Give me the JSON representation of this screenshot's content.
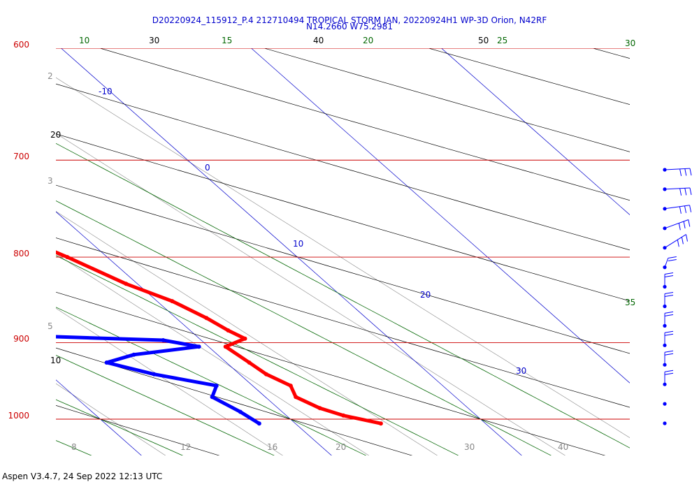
{
  "header": {
    "title_line1": "D20220924_115912_P.4 212710494 TROPICAL STORM JAN, 20220924H1 WP-3D Orion, N42RF",
    "title_line2": "N14.2660 W75.2981"
  },
  "footer": {
    "version_text": "Aspen V3.4.7, 24 Sep 2022  12:13 UTC"
  },
  "colors": {
    "isobar": "#cc0000",
    "temperature": "#ff0000",
    "dewpoint": "#0000ff",
    "isotherm": "#0000cc",
    "dry_adiabat": "#000000",
    "moist_adiabat": "#006600",
    "mixing_ratio": "#888888"
  },
  "chart_data": {
    "type": "skew-t",
    "y_axis": {
      "scale": "log-pressure",
      "ticks": [
        {
          "p": 600,
          "label": "600"
        },
        {
          "p": 700,
          "label": "700"
        },
        {
          "p": 800,
          "label": "800"
        },
        {
          "p": 900,
          "label": "900"
        },
        {
          "p": 1000,
          "label": "1000"
        }
      ]
    },
    "isotherm_labels": [
      "-10",
      "0",
      "10",
      "20",
      "30"
    ],
    "dry_adiabat_labels": [
      "30",
      "40",
      "50",
      "20",
      "10"
    ],
    "moist_adiabat_labels": [
      "10",
      "15",
      "20",
      "25",
      "30",
      "35"
    ],
    "mixing_ratio_labels": [
      "2",
      "3",
      "5",
      "8",
      "12",
      "16",
      "20",
      "30",
      "40"
    ],
    "temperature_profile": [
      {
        "p": 1006,
        "t": 24.5
      },
      {
        "p": 995,
        "t": 23.0
      },
      {
        "p": 985,
        "t": 22.2
      },
      {
        "p": 970,
        "t": 21.6
      },
      {
        "p": 955,
        "t": 22.0
      },
      {
        "p": 940,
        "t": 21.4
      },
      {
        "p": 925,
        "t": 21.2
      },
      {
        "p": 905,
        "t": 20.9
      },
      {
        "p": 895,
        "t": 22.4
      },
      {
        "p": 885,
        "t": 22.0
      },
      {
        "p": 870,
        "t": 21.6
      },
      {
        "p": 850,
        "t": 20.8
      },
      {
        "p": 830,
        "t": 19.4
      },
      {
        "p": 800,
        "t": 17.9
      },
      {
        "p": 775,
        "t": 16.4
      },
      {
        "p": 755,
        "t": 15.3
      },
      {
        "p": 740,
        "t": 14.8
      },
      {
        "p": 725,
        "t": 12.6
      },
      {
        "p": 710,
        "t": 11.5
      },
      {
        "p": 700,
        "t": 11.0
      }
    ],
    "dewpoint_profile": [
      {
        "p": 1006,
        "t": 18.1
      },
      {
        "p": 990,
        "t": 17.8
      },
      {
        "p": 970,
        "t": 17.2
      },
      {
        "p": 955,
        "t": 18.1
      },
      {
        "p": 940,
        "t": 15.5
      },
      {
        "p": 925,
        "t": 13.7
      },
      {
        "p": 915,
        "t": 15.6
      },
      {
        "p": 905,
        "t": 19.5
      },
      {
        "p": 897,
        "t": 18.0
      },
      {
        "p": 890,
        "t": 9.1
      },
      {
        "p": 870,
        "t": 9.2
      },
      {
        "p": 850,
        "t": 10.5
      },
      {
        "p": 830,
        "t": 13.3
      },
      {
        "p": 810,
        "t": 14.4
      },
      {
        "p": 790,
        "t": 11.8
      },
      {
        "p": 770,
        "t": 10.6
      },
      {
        "p": 750,
        "t": 10.3
      },
      {
        "p": 740,
        "t": 8.0
      },
      {
        "p": 725,
        "t": 3.7
      },
      {
        "p": 715,
        "t": 2.8
      },
      {
        "p": 706,
        "t": 1.3
      },
      {
        "p": 702,
        "t": 0.9
      }
    ],
    "wind_barb_levels": 14
  }
}
